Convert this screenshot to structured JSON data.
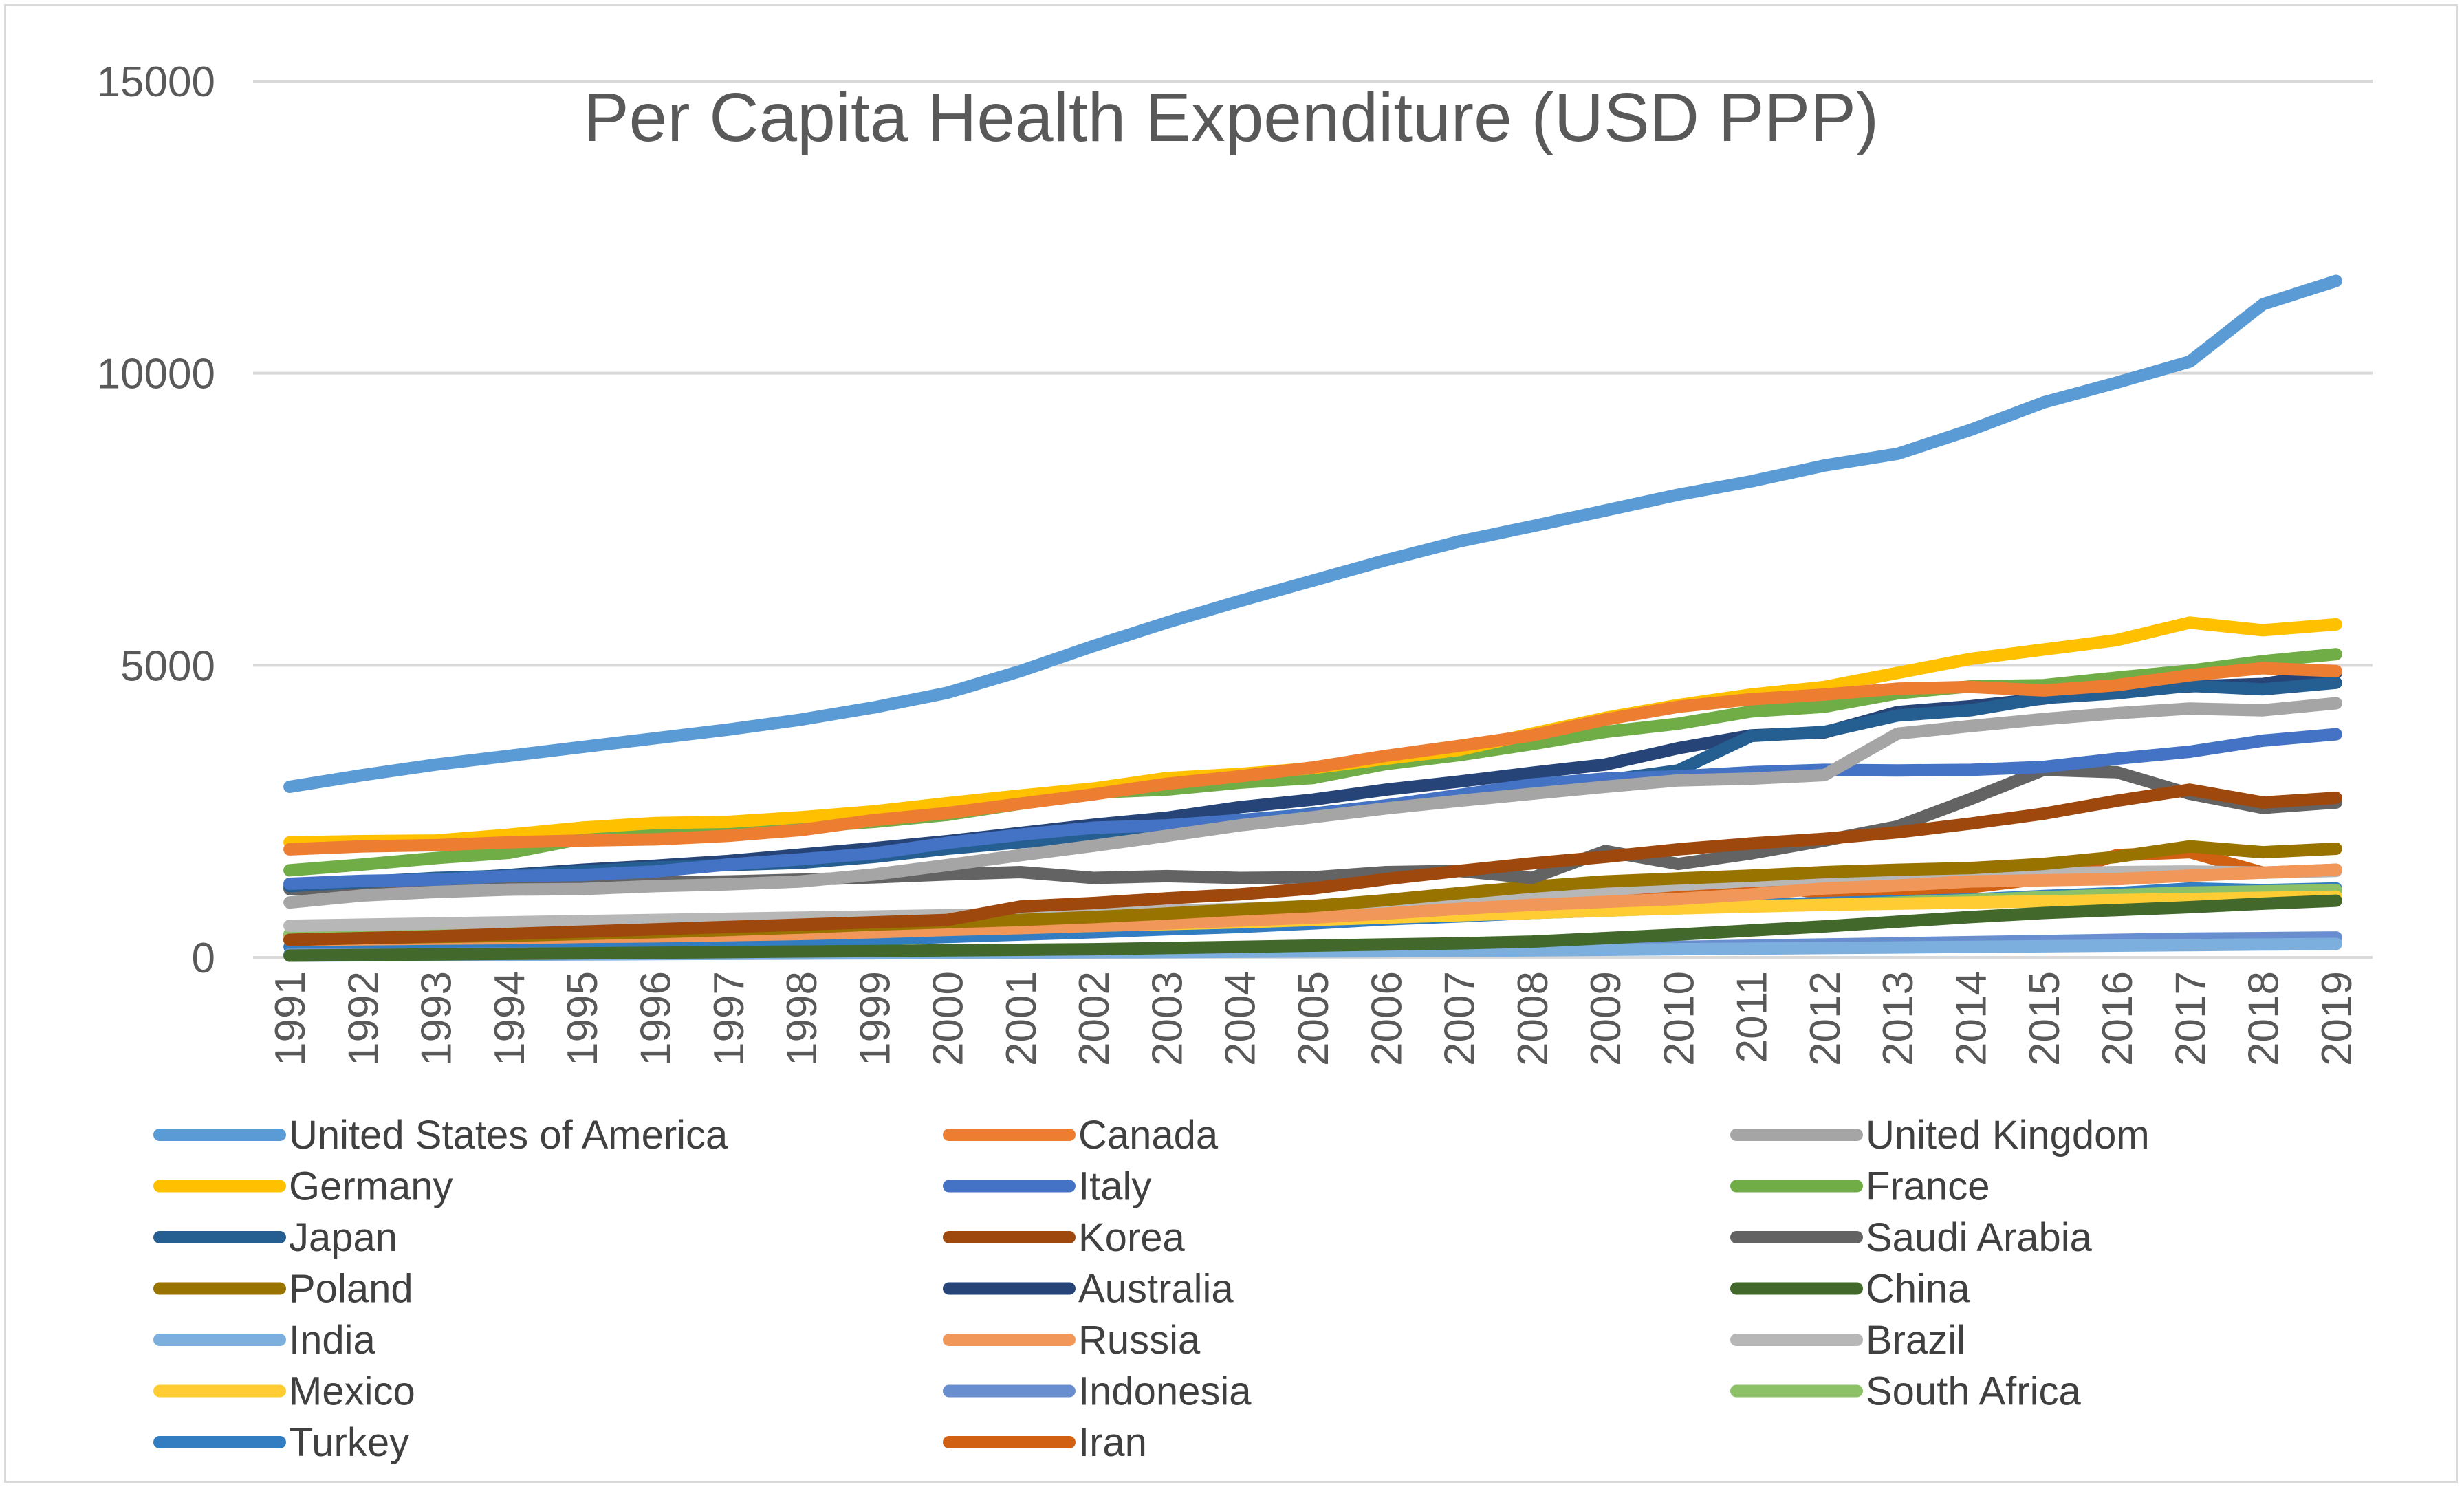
{
  "chart_data": {
    "type": "line",
    "title": "Per Capita Health Expenditure (USD PPP)",
    "xlabel": "",
    "ylabel": "",
    "ylim": [
      0,
      15000
    ],
    "yticks": [
      0,
      5000,
      10000,
      15000
    ],
    "grid": true,
    "legend_position": "bottom",
    "categories": [
      "1991",
      "1992",
      "1993",
      "1994",
      "1995",
      "1996",
      "1997",
      "1998",
      "1999",
      "2000",
      "2001",
      "2002",
      "2003",
      "2004",
      "2005",
      "2006",
      "2007",
      "2008",
      "2009",
      "2010",
      "2011",
      "2012",
      "2013",
      "2014",
      "2015",
      "2016",
      "2017",
      "2018",
      "2019"
    ],
    "series": [
      {
        "name": "United States of America",
        "color": "#5b9bd5",
        "values": [
          2920,
          3120,
          3300,
          3450,
          3600,
          3750,
          3900,
          4070,
          4280,
          4530,
          4900,
          5330,
          5730,
          6100,
          6450,
          6800,
          7120,
          7380,
          7650,
          7920,
          8150,
          8420,
          8620,
          9030,
          9500,
          9840,
          10200,
          11180,
          11580
        ]
      },
      {
        "name": "Canada",
        "color": "#ed7d31",
        "values": [
          1850,
          1900,
          1920,
          1970,
          2000,
          2020,
          2080,
          2180,
          2350,
          2470,
          2630,
          2790,
          2970,
          3100,
          3250,
          3450,
          3620,
          3800,
          4070,
          4290,
          4420,
          4500,
          4600,
          4630,
          4570,
          4660,
          4830,
          4950,
          4900
        ]
      },
      {
        "name": "United Kingdom",
        "color": "#a5a5a5",
        "values": [
          940,
          1060,
          1120,
          1160,
          1170,
          1220,
          1250,
          1300,
          1420,
          1580,
          1750,
          1910,
          2080,
          2260,
          2400,
          2550,
          2680,
          2800,
          2920,
          3030,
          3060,
          3120,
          3830,
          3960,
          4080,
          4180,
          4260,
          4230,
          4350
        ]
      },
      {
        "name": "Germany",
        "color": "#ffc000",
        "values": [
          1970,
          1990,
          2000,
          2100,
          2220,
          2300,
          2320,
          2400,
          2500,
          2640,
          2770,
          2890,
          3070,
          3140,
          3240,
          3400,
          3550,
          3830,
          4100,
          4320,
          4500,
          4630,
          4870,
          5110,
          5270,
          5430,
          5730,
          5600,
          5700
        ]
      },
      {
        "name": "Italy",
        "color": "#4472c4",
        "values": [
          1260,
          1310,
          1330,
          1390,
          1410,
          1470,
          1590,
          1680,
          1780,
          1960,
          2100,
          2220,
          2260,
          2350,
          2450,
          2600,
          2780,
          2960,
          3060,
          3100,
          3170,
          3210,
          3200,
          3210,
          3260,
          3400,
          3520,
          3710,
          3820
        ]
      },
      {
        "name": "France",
        "color": "#70ad47",
        "values": [
          1490,
          1590,
          1700,
          1790,
          2030,
          2100,
          2160,
          2230,
          2320,
          2440,
          2630,
          2820,
          2870,
          2990,
          3070,
          3310,
          3460,
          3650,
          3860,
          4000,
          4210,
          4290,
          4520,
          4640,
          4660,
          4790,
          4910,
          5070,
          5190
        ]
      },
      {
        "name": "Japan",
        "color": "#255e91",
        "values": [
          1220,
          1290,
          1360,
          1400,
          1470,
          1540,
          1580,
          1620,
          1720,
          1860,
          1970,
          2070,
          2210,
          2330,
          2460,
          2600,
          2730,
          2870,
          3030,
          3200,
          3790,
          3860,
          4140,
          4230,
          4440,
          4520,
          4650,
          4590,
          4700
        ]
      },
      {
        "name": "Korea",
        "color": "#9e480e",
        "values": [
          300,
          330,
          360,
          400,
          440,
          480,
          520,
          560,
          600,
          640,
          870,
          930,
          1010,
          1080,
          1180,
          1340,
          1480,
          1610,
          1720,
          1850,
          1950,
          2030,
          2140,
          2290,
          2460,
          2680,
          2870,
          2650,
          2730
        ]
      },
      {
        "name": "Saudi Arabia",
        "color": "#636363",
        "values": [
          1170,
          1190,
          1210,
          1240,
          1260,
          1280,
          1300,
          1330,
          1370,
          1420,
          1460,
          1360,
          1390,
          1360,
          1370,
          1460,
          1480,
          1360,
          1820,
          1600,
          1780,
          2000,
          2240,
          2710,
          3210,
          3170,
          2800,
          2560,
          2650
        ]
      },
      {
        "name": "Poland",
        "color": "#997300",
        "values": [
          300,
          330,
          350,
          370,
          400,
          430,
          470,
          510,
          560,
          600,
          640,
          690,
          750,
          820,
          880,
          980,
          1100,
          1210,
          1300,
          1350,
          1400,
          1460,
          1500,
          1530,
          1600,
          1720,
          1900,
          1800,
          1860
        ]
      },
      {
        "name": "Australia",
        "color": "#264478",
        "values": [
          1180,
          1260,
          1330,
          1410,
          1500,
          1570,
          1650,
          1760,
          1870,
          1990,
          2130,
          2270,
          2390,
          2570,
          2700,
          2870,
          3010,
          3160,
          3300,
          3580,
          3800,
          3850,
          4200,
          4300,
          4430,
          4600,
          4640,
          4680,
          4870
        ]
      },
      {
        "name": "China",
        "color": "#43682b",
        "values": [
          30,
          40,
          50,
          60,
          70,
          80,
          90,
          100,
          110,
          120,
          130,
          140,
          160,
          180,
          200,
          220,
          240,
          270,
          330,
          390,
          460,
          530,
          610,
          690,
          760,
          810,
          860,
          920,
          970
        ]
      },
      {
        "name": "India",
        "color": "#7cafdd",
        "values": [
          30,
          35,
          40,
          45,
          50,
          55,
          60,
          65,
          70,
          75,
          80,
          85,
          90,
          95,
          100,
          105,
          110,
          120,
          130,
          140,
          150,
          160,
          170,
          180,
          190,
          200,
          210,
          220,
          230
        ]
      },
      {
        "name": "Russia",
        "color": "#f1975a",
        "values": [
          300,
          310,
          320,
          330,
          350,
          360,
          380,
          400,
          430,
          470,
          500,
          540,
          580,
          630,
          680,
          750,
          830,
          900,
          950,
          1000,
          1080,
          1180,
          1230,
          1300,
          1320,
          1340,
          1400,
          1450,
          1500
        ]
      },
      {
        "name": "Brazil",
        "color": "#b7b7b7",
        "values": [
          540,
          560,
          580,
          600,
          620,
          640,
          660,
          680,
          700,
          720,
          750,
          780,
          800,
          830,
          880,
          940,
          1010,
          1080,
          1150,
          1240,
          1310,
          1360,
          1390,
          1420,
          1440,
          1460,
          1470,
          1450,
          1480
        ]
      },
      {
        "name": "Mexico",
        "color": "#ffcd33",
        "values": [
          300,
          320,
          340,
          360,
          370,
          380,
          400,
          420,
          450,
          480,
          510,
          540,
          570,
          600,
          640,
          680,
          720,
          760,
          800,
          840,
          870,
          900,
          920,
          940,
          960,
          980,
          1000,
          1020,
          1040
        ]
      },
      {
        "name": "Indonesia",
        "color": "#698ed0",
        "values": [
          50,
          55,
          60,
          65,
          70,
          75,
          80,
          85,
          90,
          95,
          100,
          105,
          110,
          120,
          130,
          140,
          150,
          160,
          170,
          180,
          200,
          220,
          240,
          260,
          280,
          300,
          320,
          330,
          340
        ]
      },
      {
        "name": "South Africa",
        "color": "#8cc168",
        "values": [
          400,
          410,
          420,
          430,
          440,
          450,
          460,
          470,
          490,
          510,
          530,
          550,
          570,
          600,
          640,
          680,
          720,
          760,
          800,
          840,
          880,
          900,
          940,
          980,
          1030,
          1070,
          1110,
          1130,
          1150
        ]
      },
      {
        "name": "Turkey",
        "color": "#327dc2",
        "values": [
          180,
          190,
          200,
          210,
          220,
          240,
          260,
          280,
          310,
          350,
          390,
          430,
          480,
          520,
          580,
          650,
          700,
          760,
          800,
          860,
          900,
          930,
          960,
          990,
          1050,
          1100,
          1180,
          1150,
          1180
        ]
      },
      {
        "name": "Iran",
        "color": "#d26012",
        "values": [
          380,
          390,
          400,
          410,
          420,
          430,
          440,
          450,
          460,
          470,
          480,
          500,
          520,
          560,
          620,
          700,
          780,
          860,
          1070,
          1200,
          1250,
          1100,
          1050,
          1200,
          1350,
          1750,
          1800,
          1450,
          1500
        ]
      }
    ]
  }
}
